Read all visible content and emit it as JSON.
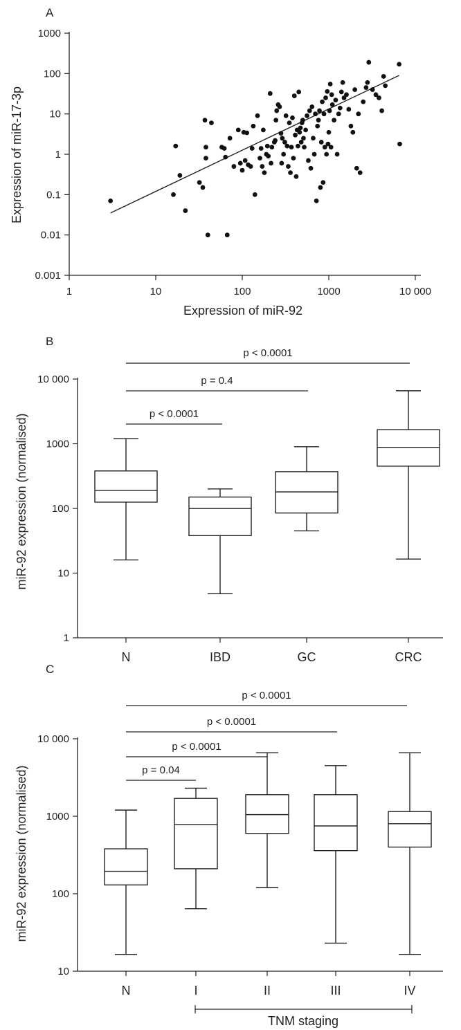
{
  "chart_data": [
    {
      "panel": "A",
      "type": "scatter",
      "xlabel": "Expression of miR-92",
      "ylabel": "Expression of miR-17-3p",
      "x_scale": "log",
      "y_scale": "log",
      "xlim": [
        1,
        10000
      ],
      "ylim": [
        0.001,
        1000
      ],
      "x_ticks": [
        1,
        10,
        100,
        1000,
        10000
      ],
      "x_tick_labels": [
        "1",
        "10",
        "100",
        "1000",
        "10 000"
      ],
      "y_ticks": [
        0.001,
        0.01,
        0.1,
        1,
        10,
        100,
        1000
      ],
      "y_tick_labels": [
        "0.001",
        "0.01",
        "0.1",
        "1",
        "10",
        "100",
        "1000"
      ],
      "trend_line": {
        "x": [
          3,
          6500
        ],
        "y": [
          0.035,
          90
        ]
      },
      "points": [
        [
          3,
          0.07
        ],
        [
          16,
          0.1
        ],
        [
          17,
          1.6
        ],
        [
          19,
          0.3
        ],
        [
          22,
          0.04
        ],
        [
          32,
          0.2
        ],
        [
          35,
          0.15
        ],
        [
          38,
          1.5
        ],
        [
          37,
          7
        ],
        [
          38,
          0.8
        ],
        [
          40,
          0.01
        ],
        [
          44,
          6
        ],
        [
          58,
          1.5
        ],
        [
          62,
          1.4
        ],
        [
          64,
          0.85
        ],
        [
          67,
          0.01
        ],
        [
          72,
          2.5
        ],
        [
          80,
          0.5
        ],
        [
          90,
          4
        ],
        [
          95,
          0.6
        ],
        [
          100,
          0.4
        ],
        [
          104,
          3.5
        ],
        [
          108,
          0.7
        ],
        [
          113,
          3.4
        ],
        [
          117,
          0.55
        ],
        [
          125,
          0.5
        ],
        [
          130,
          1.4
        ],
        [
          134,
          5
        ],
        [
          140,
          0.1
        ],
        [
          150,
          9
        ],
        [
          160,
          0.8
        ],
        [
          165,
          1.4
        ],
        [
          170,
          0.5
        ],
        [
          175,
          4
        ],
        [
          180,
          0.35
        ],
        [
          190,
          1
        ],
        [
          195,
          1.6
        ],
        [
          200,
          0.9
        ],
        [
          210,
          32
        ],
        [
          215,
          0.6
        ],
        [
          220,
          1.5
        ],
        [
          235,
          2
        ],
        [
          240,
          2.2
        ],
        [
          245,
          7
        ],
        [
          250,
          12
        ],
        [
          260,
          17
        ],
        [
          270,
          15
        ],
        [
          280,
          3.3
        ],
        [
          285,
          0.6
        ],
        [
          290,
          2.5
        ],
        [
          300,
          1
        ],
        [
          310,
          2
        ],
        [
          320,
          9
        ],
        [
          330,
          1.6
        ],
        [
          340,
          0.5
        ],
        [
          350,
          6
        ],
        [
          360,
          0.35
        ],
        [
          370,
          1.5
        ],
        [
          380,
          8
        ],
        [
          390,
          0.8
        ],
        [
          400,
          28
        ],
        [
          410,
          3
        ],
        [
          420,
          0.28
        ],
        [
          430,
          4
        ],
        [
          440,
          1.6
        ],
        [
          450,
          35
        ],
        [
          460,
          3.5
        ],
        [
          470,
          4.5
        ],
        [
          480,
          2
        ],
        [
          490,
          6
        ],
        [
          500,
          7
        ],
        [
          510,
          2.5
        ],
        [
          520,
          1.5
        ],
        [
          540,
          4
        ],
        [
          560,
          9
        ],
        [
          580,
          0.7
        ],
        [
          600,
          12
        ],
        [
          620,
          0.45
        ],
        [
          640,
          15
        ],
        [
          660,
          2.5
        ],
        [
          680,
          1
        ],
        [
          700,
          10
        ],
        [
          720,
          0.07
        ],
        [
          740,
          5
        ],
        [
          760,
          7
        ],
        [
          780,
          12
        ],
        [
          800,
          0.15
        ],
        [
          820,
          2
        ],
        [
          840,
          20
        ],
        [
          860,
          0.2
        ],
        [
          880,
          10
        ],
        [
          900,
          1.5
        ],
        [
          920,
          25
        ],
        [
          940,
          1
        ],
        [
          960,
          36
        ],
        [
          980,
          1.8
        ],
        [
          1000,
          3.5
        ],
        [
          1020,
          12
        ],
        [
          1040,
          55
        ],
        [
          1060,
          1.5
        ],
        [
          1080,
          30
        ],
        [
          1100,
          17
        ],
        [
          1150,
          7
        ],
        [
          1200,
          22
        ],
        [
          1250,
          1
        ],
        [
          1300,
          10
        ],
        [
          1350,
          14
        ],
        [
          1400,
          35
        ],
        [
          1450,
          60
        ],
        [
          1500,
          25
        ],
        [
          1600,
          30
        ],
        [
          1700,
          13
        ],
        [
          1800,
          5
        ],
        [
          1900,
          3.5
        ],
        [
          2000,
          40
        ],
        [
          2100,
          0.45
        ],
        [
          2200,
          10
        ],
        [
          2300,
          0.35
        ],
        [
          2500,
          20
        ],
        [
          2700,
          45
        ],
        [
          2800,
          60
        ],
        [
          2900,
          190
        ],
        [
          3200,
          40
        ],
        [
          3500,
          30
        ],
        [
          3800,
          25
        ],
        [
          4100,
          12
        ],
        [
          4300,
          85
        ],
        [
          4500,
          50
        ],
        [
          6500,
          170
        ],
        [
          6600,
          1.8
        ]
      ]
    },
    {
      "panel": "B",
      "type": "box",
      "ylabel": "miR-92 expression (normalised)",
      "y_scale": "log",
      "ylim": [
        1,
        10000
      ],
      "y_ticks": [
        1,
        10,
        100,
        1000,
        10000
      ],
      "y_tick_labels": [
        "1",
        "10",
        "100",
        "1000",
        "10 000"
      ],
      "categories": [
        "N",
        "IBD",
        "GC",
        "CRC"
      ],
      "boxes": [
        {
          "min": 16,
          "q1": 125,
          "median": 190,
          "q3": 380,
          "max": 1200
        },
        {
          "min": 4.8,
          "q1": 38,
          "median": 100,
          "q3": 150,
          "max": 200
        },
        {
          "min": 45,
          "q1": 85,
          "median": 180,
          "q3": 370,
          "max": 900
        },
        {
          "min": 16.5,
          "q1": 450,
          "median": 880,
          "q3": 1650,
          "max": 6600
        }
      ],
      "significance": [
        {
          "from": 0,
          "to": 1,
          "label": "p < 0.0001"
        },
        {
          "from": 0,
          "to": 2,
          "label": "p = 0.4"
        },
        {
          "from": 0,
          "to": 3,
          "label": "p < 0.0001"
        }
      ]
    },
    {
      "panel": "C",
      "type": "box",
      "ylabel": "miR-92 expression (normalised)",
      "y_scale": "log",
      "ylim": [
        10,
        10000
      ],
      "y_ticks": [
        10,
        100,
        1000,
        10000
      ],
      "y_tick_labels": [
        "10",
        "100",
        "1000",
        "10 000"
      ],
      "categories": [
        "N",
        "I",
        "II",
        "III",
        "IV"
      ],
      "group_label": "TNM staging",
      "boxes": [
        {
          "min": 16.5,
          "q1": 130,
          "median": 195,
          "q3": 380,
          "max": 1200
        },
        {
          "min": 64,
          "q1": 210,
          "median": 780,
          "q3": 1700,
          "max": 2300
        },
        {
          "min": 120,
          "q1": 600,
          "median": 1050,
          "q3": 1900,
          "max": 6600
        },
        {
          "min": 23,
          "q1": 360,
          "median": 750,
          "q3": 1900,
          "max": 4500
        },
        {
          "min": 16.5,
          "q1": 400,
          "median": 800,
          "q3": 1150,
          "max": 6600
        }
      ],
      "significance": [
        {
          "from": 0,
          "to": 1,
          "label": "p = 0.04"
        },
        {
          "from": 0,
          "to": 2,
          "label": "p < 0.0001"
        },
        {
          "from": 0,
          "to": 3,
          "label": "p < 0.0001"
        },
        {
          "from": 0,
          "to": 4,
          "label": "p < 0.0001"
        }
      ]
    }
  ]
}
